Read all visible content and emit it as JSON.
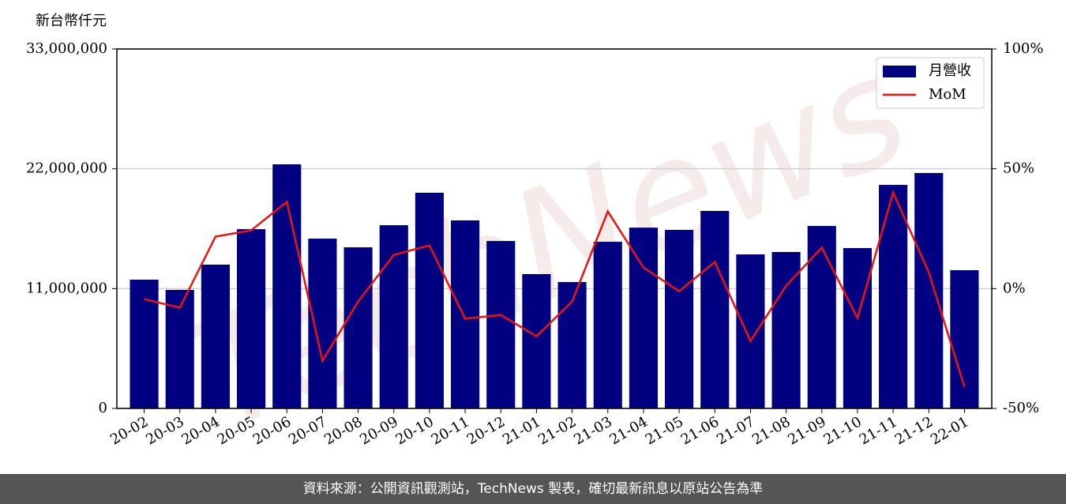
{
  "chart_data": {
    "type": "bar_line",
    "y_label": "新台幣仟元",
    "watermark": "TechNews",
    "footer": "資料來源：公開資訊觀測站，TechNews 製表，確切最新訊息以原站公告為準",
    "categories": [
      "20-02",
      "20-03",
      "20-04",
      "20-05",
      "20-06",
      "20-07",
      "20-08",
      "20-09",
      "20-10",
      "20-11",
      "20-12",
      "21-01",
      "21-02",
      "21-03",
      "21-04",
      "21-05",
      "21-06",
      "21-07",
      "21-08",
      "21-09",
      "21-10",
      "21-11",
      "21-12",
      "22-01"
    ],
    "series": [
      {
        "name": "月營收",
        "type": "bar",
        "color": "#000080",
        "values": [
          11820000,
          10880000,
          13200000,
          16460000,
          22410000,
          15590000,
          14790000,
          16820000,
          19800000,
          17260000,
          15370000,
          12330000,
          11600000,
          15300000,
          16600000,
          16390000,
          18130000,
          14140000,
          14360000,
          16750000,
          14720000,
          20520000,
          21610000,
          12690000
        ]
      },
      {
        "name": "MoM",
        "type": "line",
        "axis": "y2",
        "color": "#ee1111",
        "values": [
          -4.4,
          -8.0,
          21.7,
          24.3,
          36.2,
          -30.1,
          -5.4,
          14.1,
          18.0,
          -12.6,
          -11.0,
          -19.9,
          -5.4,
          32.2,
          8.8,
          -1.1,
          11.1,
          -21.9,
          1.2,
          17.1,
          -12.3,
          40.1,
          6.8,
          -41.0
        ]
      }
    ],
    "ylim": [
      0,
      33000000
    ],
    "yticks": [
      0,
      {
        "value": 11000000,
        "label": "11,000,000"
      },
      {
        "value": 22000000,
        "label": "22,000,000"
      },
      {
        "value": 33000000,
        "label": "33,000,000"
      }
    ],
    "y2lim": [
      -50,
      100
    ],
    "y2ticks": [
      {
        "value": -50,
        "label": "-50%"
      },
      {
        "value": 0,
        "label": "0%"
      },
      {
        "value": 50,
        "label": "50%"
      },
      {
        "value": 100,
        "label": "100%"
      }
    ],
    "grid": true,
    "legend": "upper right"
  }
}
